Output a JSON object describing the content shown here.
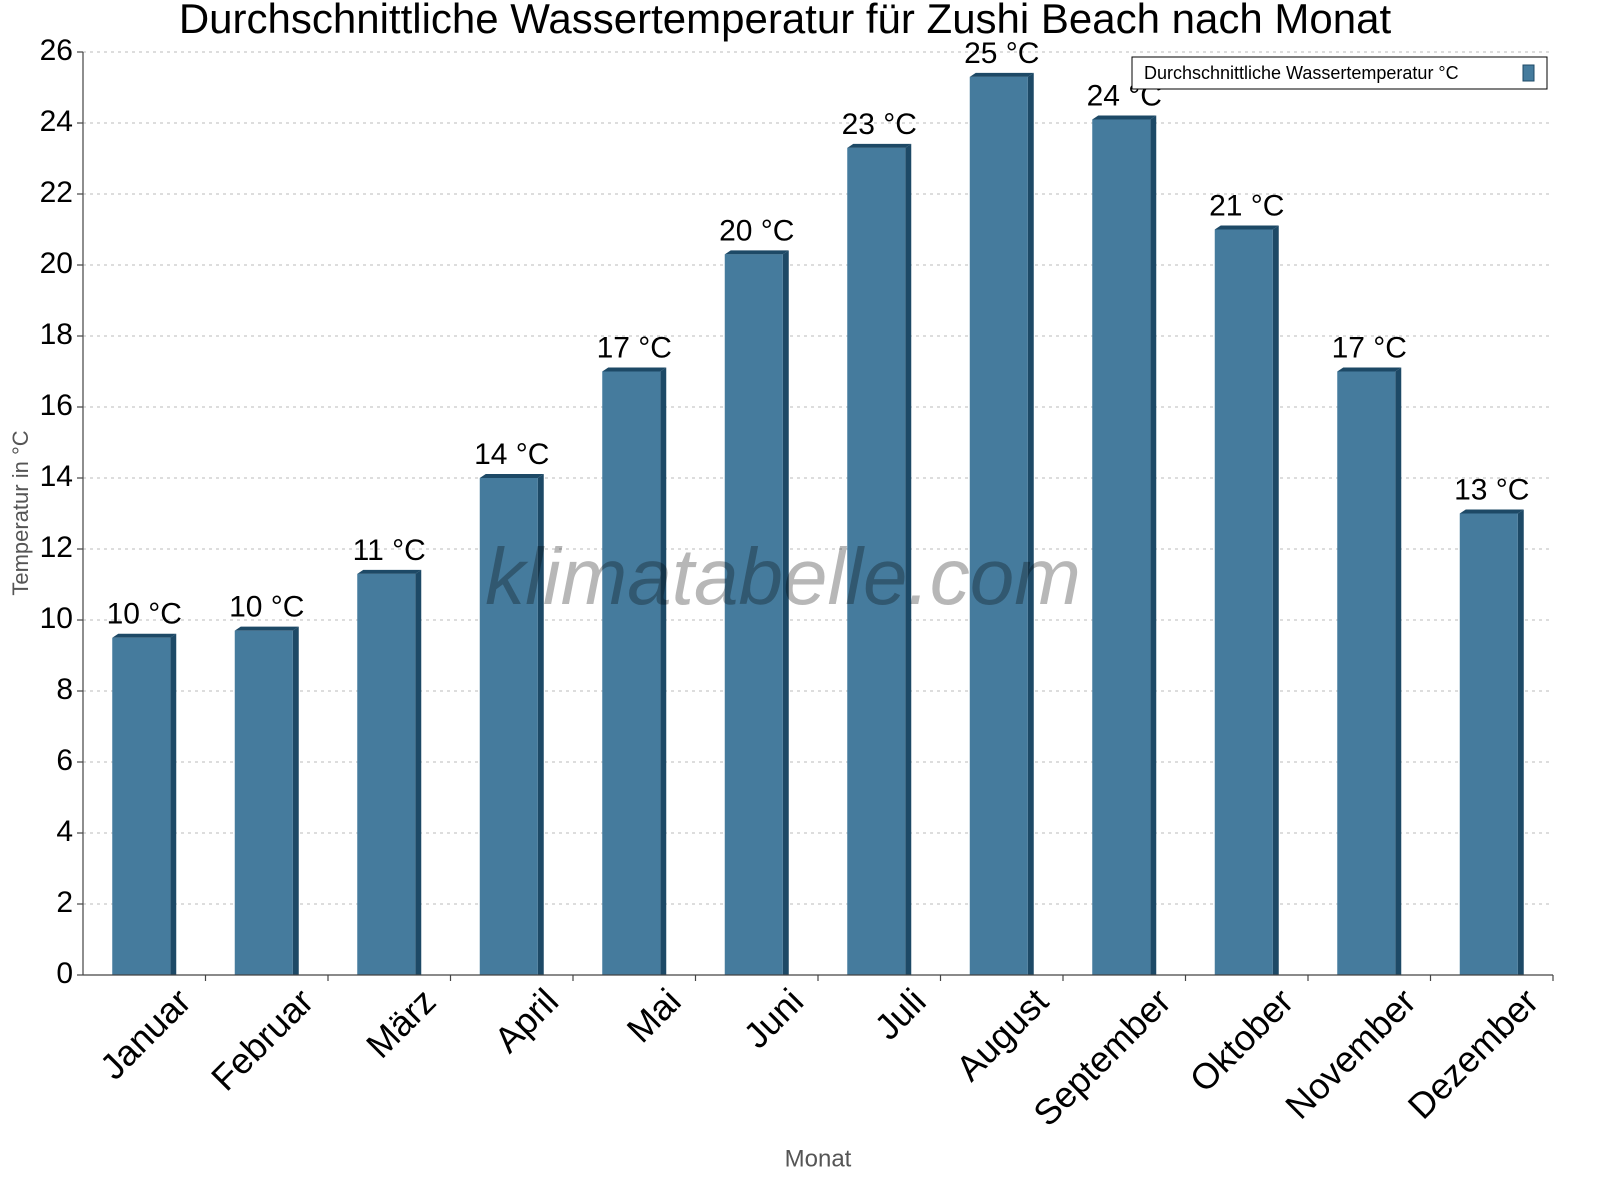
{
  "chart_data": {
    "type": "bar",
    "title": "Durchschnittliche Wassertemperatur für Zushi Beach nach Monat",
    "x_label": "Monat",
    "y_label": "Temperatur in °C",
    "watermark": "klimatabelle.com",
    "categories": [
      "Januar",
      "Februar",
      "März",
      "April",
      "Mai",
      "Juni",
      "Juli",
      "August",
      "September",
      "Oktober",
      "November",
      "Dezember"
    ],
    "series": [
      {
        "name": "Durchschnittliche Wassertemperatur °C",
        "color": "#457b9d",
        "values": [
          9.5,
          9.7,
          11.3,
          14,
          17,
          20.3,
          23.3,
          25.3,
          24.1,
          21,
          17,
          13
        ],
        "value_labels": [
          "10 °C",
          "10 °C",
          "11 °C",
          "14 °C",
          "17 °C",
          "20 °C",
          "23 °C",
          "25 °C",
          "24 °C",
          "21 °C",
          "17 °C",
          "13 °C"
        ]
      }
    ],
    "ylim": [
      0,
      26
    ],
    "yticks": [
      0,
      2,
      4,
      6,
      8,
      10,
      12,
      14,
      16,
      18,
      20,
      22,
      24,
      26
    ],
    "grid": true,
    "legend": "top-right"
  }
}
